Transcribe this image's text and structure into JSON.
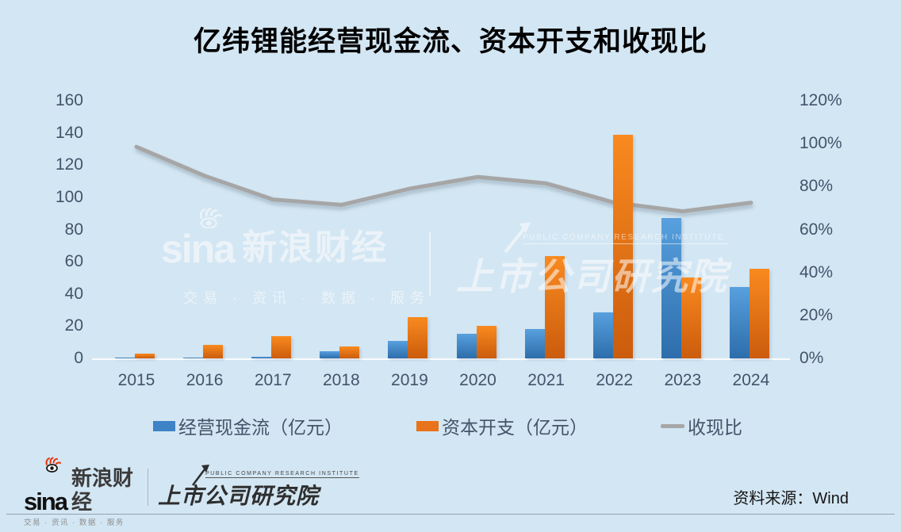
{
  "title": "亿纬锂能经营现金流、资本开支和收现比",
  "colors": {
    "background": "#d3e6f3",
    "bar_blue": "#3d83c6",
    "bar_blue_gradient": [
      "#58a0de",
      "#2d6dab"
    ],
    "bar_orange": "#e8731a",
    "bar_orange_gradient": [
      "#f98a1f",
      "#cb5c0d"
    ],
    "ratio_line": "#a6a6a6",
    "axis_text": "#44546a",
    "sina_red": "#e8340c"
  },
  "chart_data": {
    "type": "bar",
    "title": "亿纬锂能经营现金流、资本开支和收现比",
    "categories": [
      "2015",
      "2016",
      "2017",
      "2018",
      "2019",
      "2020",
      "2021",
      "2022",
      "2023",
      "2024"
    ],
    "series": [
      {
        "name": "经营现金流（亿元）",
        "type": "bar",
        "axis": "left",
        "values": [
          0.5,
          0.7,
          1.2,
          4.3,
          10.6,
          15.2,
          18.3,
          28.5,
          87,
          44.5
        ]
      },
      {
        "name": "资本开支（亿元）",
        "type": "bar",
        "axis": "left",
        "values": [
          3.2,
          8.5,
          13.8,
          7.3,
          25.4,
          20.2,
          63.4,
          138.6,
          50,
          55.5
        ]
      },
      {
        "name": "收现比",
        "type": "line",
        "axis": "right",
        "unit": "%",
        "values": [
          98.5,
          85,
          74,
          71.5,
          79,
          84.5,
          81.5,
          72.5,
          68.5,
          72.5
        ]
      }
    ],
    "left_axis": {
      "min": 0,
      "max": 160,
      "step": 20,
      "ticks": [
        "0",
        "20",
        "40",
        "60",
        "80",
        "100",
        "120",
        "140",
        "160"
      ]
    },
    "right_axis": {
      "min": 0,
      "max": 120,
      "step": 20,
      "ticks": [
        "0%",
        "20%",
        "40%",
        "60%",
        "80%",
        "100%",
        "120%"
      ]
    },
    "grid": false,
    "legend_position": "bottom"
  },
  "watermark": {
    "sina_word": "sina",
    "sina_cn": "新浪财经",
    "sina_sub": "交易 · 资讯 · 数据 · 服务",
    "pcri_en": "PUBLIC COMPANY RESEARCH INSTITUTE",
    "pcri_cn": "上市公司研究院"
  },
  "footer": {
    "sina_word": "sina",
    "sina_cn": "新浪财经",
    "sina_sub": "交易 · 资讯 · 数据 · 服务",
    "pcri_en": "PUBLIC COMPANY RESEARCH INSTITUTE",
    "pcri_cn": "上市公司研究院",
    "source": "资料来源：Wind"
  }
}
